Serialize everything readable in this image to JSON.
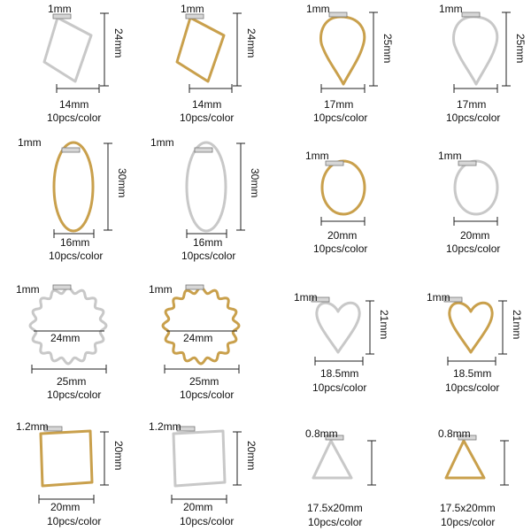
{
  "colors": {
    "gold": "#c9a04c",
    "silver": "#c8c8c8",
    "dim_line": "#222222"
  },
  "items": [
    {
      "shape": "rhombus",
      "color": "silver",
      "wire": "1mm",
      "height": "24mm",
      "width": "14mm",
      "qty": "10pcs/color"
    },
    {
      "shape": "rhombus",
      "color": "gold",
      "wire": "1mm",
      "height": "24mm",
      "width": "14mm",
      "qty": "10pcs/color"
    },
    {
      "shape": "teardrop",
      "color": "gold",
      "wire": "1mm",
      "height": "25mm",
      "width": "17mm",
      "qty": "10pcs/color"
    },
    {
      "shape": "teardrop",
      "color": "silver",
      "wire": "1mm",
      "height": "25mm",
      "width": "17mm",
      "qty": "10pcs/color"
    },
    {
      "shape": "oval-tall",
      "color": "gold",
      "wire": "1mm",
      "height": "30mm",
      "width": "16mm",
      "qty": "10pcs/color"
    },
    {
      "shape": "oval-tall",
      "color": "silver",
      "wire": "1mm",
      "height": "30mm",
      "width": "16mm",
      "qty": "10pcs/color"
    },
    {
      "shape": "oval",
      "color": "gold",
      "wire": "1mm",
      "height": "",
      "width": "20mm",
      "qty": "10pcs/color"
    },
    {
      "shape": "oval",
      "color": "silver",
      "wire": "1mm",
      "height": "",
      "width": "20mm",
      "qty": "10pcs/color"
    },
    {
      "shape": "flower",
      "color": "silver",
      "wire": "1mm",
      "inner": "24mm",
      "height": "",
      "width": "25mm",
      "qty": "10pcs/color"
    },
    {
      "shape": "flower",
      "color": "gold",
      "wire": "1mm",
      "inner": "24mm",
      "height": "",
      "width": "25mm",
      "qty": "10pcs/color"
    },
    {
      "shape": "heart",
      "color": "silver",
      "wire": "1mm",
      "height": "21mm",
      "width": "18.5mm",
      "qty": "10pcs/color"
    },
    {
      "shape": "heart",
      "color": "gold",
      "wire": "1mm",
      "height": "21mm",
      "width": "18.5mm",
      "qty": "10pcs/color"
    },
    {
      "shape": "rect",
      "color": "gold",
      "wire": "1.2mm",
      "height": "20mm",
      "width": "20mm",
      "qty": "10pcs/color"
    },
    {
      "shape": "rect",
      "color": "silver",
      "wire": "1.2mm",
      "height": "20mm",
      "width": "20mm",
      "qty": "10pcs/color"
    },
    {
      "shape": "triangle",
      "color": "silver",
      "wire": "0.8mm",
      "height": "",
      "width": "17.5x20mm",
      "qty": "10pcs/color"
    },
    {
      "shape": "triangle",
      "color": "gold",
      "wire": "0.8mm",
      "height": "",
      "width": "17.5x20mm",
      "qty": "10pcs/color"
    }
  ]
}
